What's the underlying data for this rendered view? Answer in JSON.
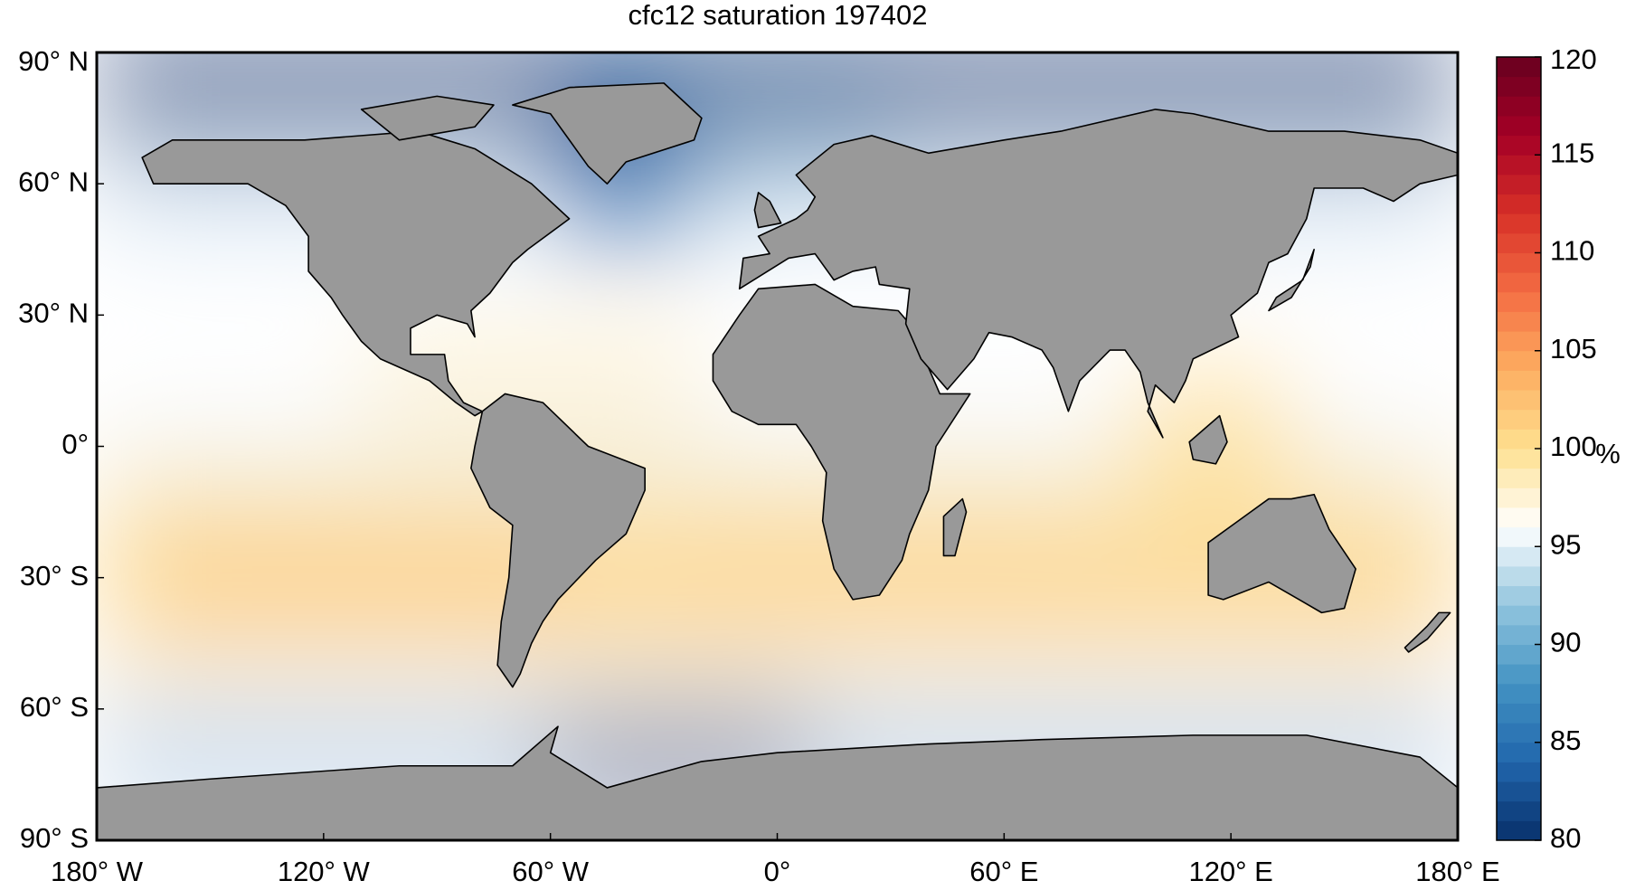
{
  "chart_data": {
    "type": "map",
    "title": "cfc12 saturation 197402",
    "xlim": [
      -180,
      180
    ],
    "ylim": [
      -90,
      90
    ],
    "xticks": [
      {
        "value": -180,
        "label": "180° W"
      },
      {
        "value": -120,
        "label": "120° W"
      },
      {
        "value": -60,
        "label": "60° W"
      },
      {
        "value": 0,
        "label": "0°"
      },
      {
        "value": 60,
        "label": "60° E"
      },
      {
        "value": 120,
        "label": "120° E"
      },
      {
        "value": 180,
        "label": "180° E"
      }
    ],
    "yticks": [
      {
        "value": 90,
        "label": "90° N"
      },
      {
        "value": 60,
        "label": "60° N"
      },
      {
        "value": 30,
        "label": "30° N"
      },
      {
        "value": 0,
        "label": "0°"
      },
      {
        "value": -30,
        "label": "30° S"
      },
      {
        "value": -60,
        "label": "60° S"
      },
      {
        "value": -90,
        "label": "90° S"
      }
    ],
    "colorbar": {
      "label": "%",
      "clim": [
        80,
        120
      ],
      "ticks": [
        80,
        85,
        90,
        95,
        100,
        105,
        110,
        115,
        120
      ],
      "levels": 40,
      "colormap": [
        "#08306b",
        "#2166ac",
        "#4393c3",
        "#92c5de",
        "#ffffff",
        "#fee090",
        "#fdae61",
        "#f46d43",
        "#d73027",
        "#a50026",
        "#67001f"
      ]
    }
  }
}
